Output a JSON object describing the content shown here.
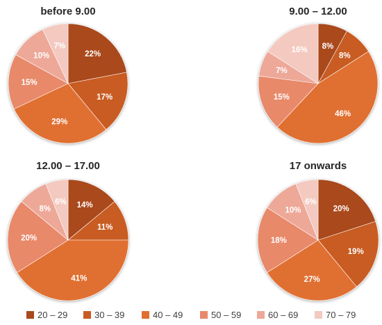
{
  "chart_data": {
    "type": "pie",
    "legend_position": "bottom",
    "legend": {
      "items": [
        {
          "label": "20 – 29",
          "color": "#a9491e"
        },
        {
          "label": "30 – 39",
          "color": "#c85b23"
        },
        {
          "label": "40 – 49",
          "color": "#e06f30"
        },
        {
          "label": "50 – 59",
          "color": "#e8896b"
        },
        {
          "label": "60 – 69",
          "color": "#eda898"
        },
        {
          "label": "70 – 79",
          "color": "#f4c9c0"
        }
      ]
    },
    "charts": [
      {
        "title": "before 9.00",
        "values": [
          22,
          17,
          29,
          15,
          10,
          7
        ],
        "labels": [
          "22%",
          "17%",
          "29%",
          "15%",
          "10%",
          "7%"
        ]
      },
      {
        "title": "9.00 – 12.00",
        "values": [
          8,
          8,
          46,
          15,
          7,
          16
        ],
        "labels": [
          "8%",
          "8%",
          "46%",
          "15%",
          "7%",
          "16%"
        ]
      },
      {
        "title": "12.00 – 17.00",
        "values": [
          14,
          11,
          41,
          20,
          8,
          6
        ],
        "labels": [
          "14%",
          "11%",
          "41%",
          "20%",
          "8%",
          "6%"
        ]
      },
      {
        "title": "17 onwards",
        "values": [
          20,
          19,
          27,
          18,
          10,
          6
        ],
        "labels": [
          "20%",
          "19%",
          "27%",
          "18%",
          "10%",
          "6%"
        ]
      }
    ]
  }
}
